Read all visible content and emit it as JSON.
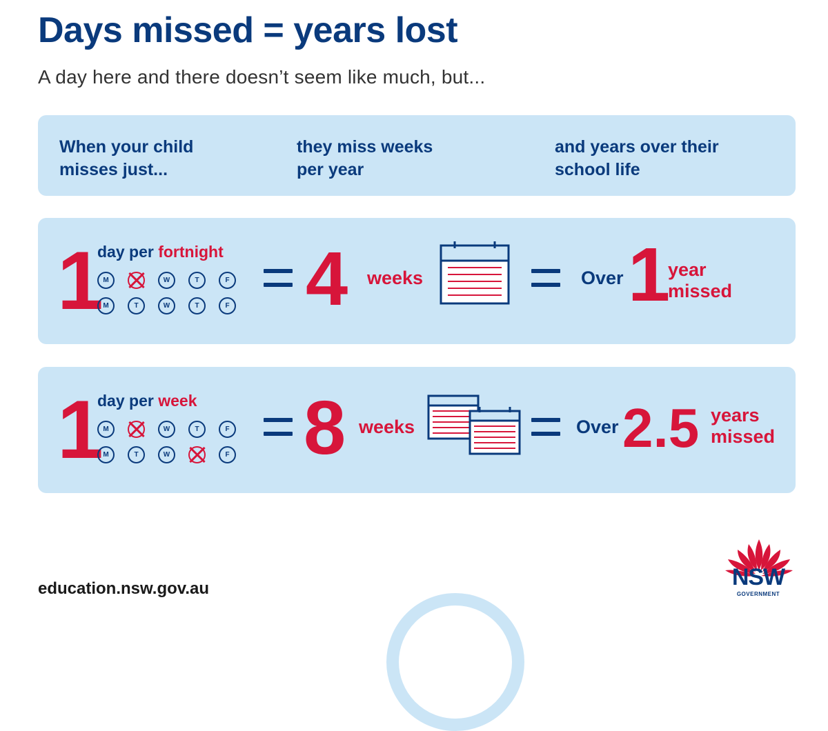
{
  "title": "Days missed = years lost",
  "subtitle": "A day here and there doesn’t seem like much, but...",
  "headers": [
    {
      "line1": "When your child",
      "line2": "misses just..."
    },
    {
      "line1": "they miss weeks",
      "line2": "per year"
    },
    {
      "line1": "and years over their",
      "line2": "school life"
    }
  ],
  "rows": [
    {
      "big_number": "1",
      "day_text": "day per",
      "period": "fortnight",
      "week1": [
        "M",
        "T",
        "W",
        "T",
        "F"
      ],
      "week2": [
        "M",
        "T",
        "W",
        "T",
        "F"
      ],
      "missed_week1": [
        1
      ],
      "missed_week2": [],
      "weeks_number": "4",
      "weeks_label": "weeks",
      "over_label": "Over",
      "years_number": "1",
      "years_label_1": "year",
      "years_label_2": "missed"
    },
    {
      "big_number": "1",
      "day_text": "day per",
      "period": "week",
      "week1": [
        "M",
        "T",
        "W",
        "T",
        "F"
      ],
      "week2": [
        "M",
        "T",
        "W",
        "T",
        "F"
      ],
      "missed_week1": [
        1
      ],
      "missed_week2": [
        3
      ],
      "weeks_number": "8",
      "weeks_label": "weeks",
      "over_label": "Over",
      "years_number": "2.5",
      "years_label_1": "years",
      "years_label_2": "missed"
    }
  ],
  "footer": {
    "url": "education.nsw.gov.au",
    "logo_text": "NSW",
    "logo_sub": "GOVERNMENT"
  },
  "colors": {
    "navy": "#0a3a7c",
    "red": "#d7153a",
    "panel": "#cbe5f6"
  },
  "icons": [
    "calendar-icon",
    "waratah-logo-icon"
  ]
}
